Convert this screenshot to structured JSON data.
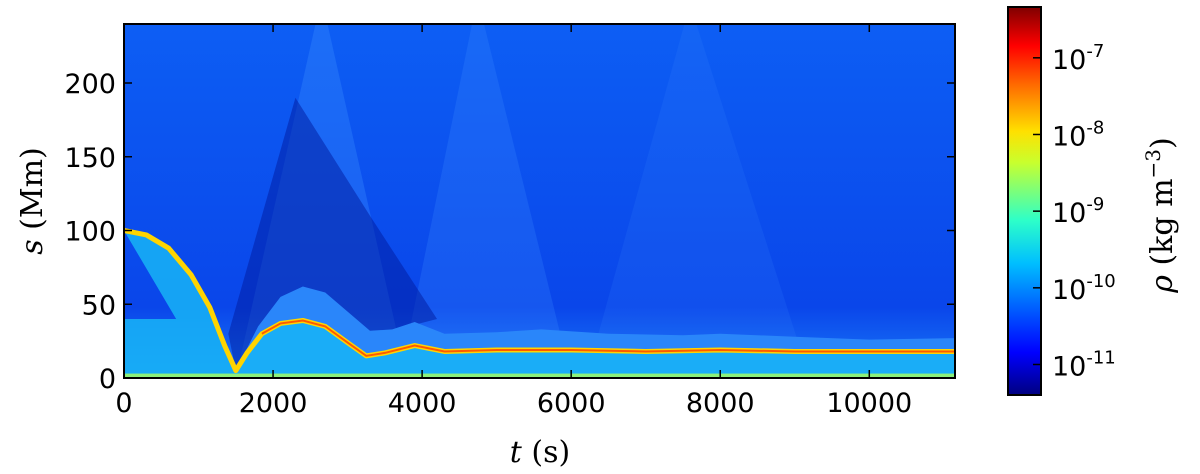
{
  "chart_data": {
    "type": "heatmap",
    "xlabel_var": "t",
    "xlabel_unit": "(s)",
    "ylabel_var": "s",
    "ylabel_unit": "(Mm)",
    "xlim": [
      0,
      11150
    ],
    "ylim": [
      0,
      240
    ],
    "xticks": [
      0,
      2000,
      4000,
      6000,
      8000,
      10000
    ],
    "xtick_labels": [
      "0",
      "2000",
      "4000",
      "6000",
      "8000",
      "10000"
    ],
    "yticks": [
      0,
      50,
      100,
      150,
      200
    ],
    "ytick_labels": [
      "0",
      "50",
      "100",
      "150",
      "200"
    ],
    "colormap": "jet",
    "colorbar": {
      "label_var": "ρ",
      "label_unit": "(kg m",
      "label_exp": "−3",
      "label_close": ")",
      "scale": "log",
      "range": [
        4e-12,
        4.6e-07
      ],
      "ticks": [
        1e-11,
        1e-10,
        1e-09,
        1e-08,
        1e-07
      ],
      "tick_bases": [
        "10",
        "10",
        "10",
        "10",
        "10"
      ],
      "tick_exps": [
        "-11",
        "-10",
        "-9",
        "-8",
        "-7"
      ]
    },
    "background_color": "#0b55f2",
    "dense_ridge": {
      "t": [
        0,
        300,
        600,
        900,
        1150,
        1350,
        1500,
        1650,
        1850,
        2100,
        2400,
        2700,
        3000,
        3250,
        3500,
        3900,
        4300,
        5000,
        6000,
        7000,
        8000,
        9000,
        10000,
        11150
      ],
      "s": [
        100,
        97,
        88,
        70,
        48,
        22,
        5,
        17,
        30,
        37,
        39,
        35,
        24,
        15,
        17,
        22,
        18,
        19,
        19,
        18,
        19,
        18,
        18,
        18
      ]
    },
    "envelope": {
      "t": [
        1500,
        1800,
        2100,
        2400,
        2700,
        3000,
        3300,
        3600,
        3900,
        4300,
        5000,
        5600,
        6500,
        7500,
        8000,
        9000,
        10000,
        11150
      ],
      "s": [
        5,
        35,
        55,
        62,
        58,
        45,
        32,
        33,
        38,
        30,
        31,
        33,
        30,
        29,
        30,
        28,
        26,
        27
      ]
    },
    "shock_fronts": [
      {
        "t_start": 1500,
        "t_peak": 2650,
        "t_end": 3800
      },
      {
        "t_start": 3700,
        "t_peak": 4750,
        "t_end": 6000
      },
      {
        "t_start": 6200,
        "t_peak": 7600,
        "t_end": 9200
      }
    ]
  }
}
